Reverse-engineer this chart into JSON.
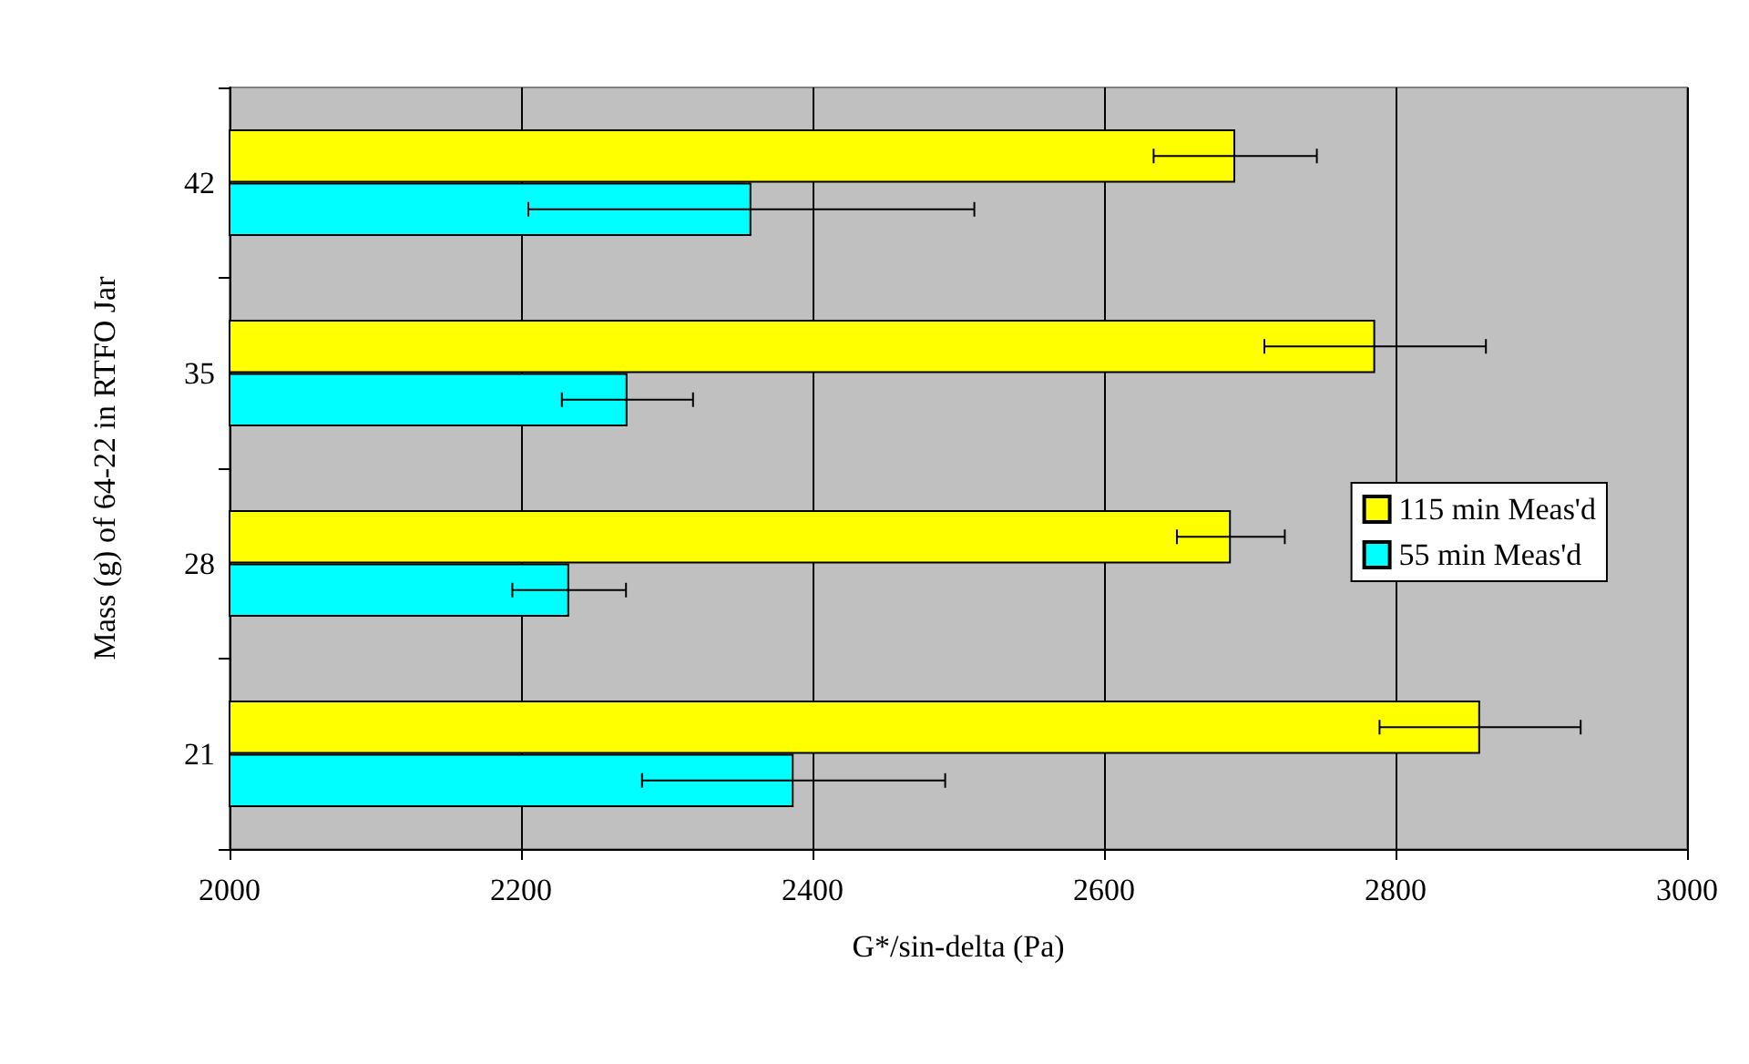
{
  "chart_data": {
    "type": "bar",
    "orientation": "horizontal",
    "xlabel": "G*/sin-delta (Pa)",
    "ylabel": "Mass (g) of 64-22 in RTFO Jar",
    "categories": [
      "42",
      "35",
      "28",
      "21"
    ],
    "series": [
      {
        "name": "115 min Meas'd",
        "color": "#ffff00",
        "values": [
          2690,
          2786,
          2687,
          2858
        ],
        "errors": [
          56,
          76,
          37,
          69
        ]
      },
      {
        "name": "55 min Meas'd",
        "color": "#00ffff",
        "values": [
          2358,
          2273,
          2233,
          2387
        ],
        "errors": [
          153,
          45,
          39,
          104
        ]
      }
    ],
    "xlim": [
      2000,
      3000
    ],
    "xticks": [
      2000,
      2200,
      2400,
      2600,
      2800,
      3000
    ],
    "grid": "x",
    "legend": "right"
  }
}
